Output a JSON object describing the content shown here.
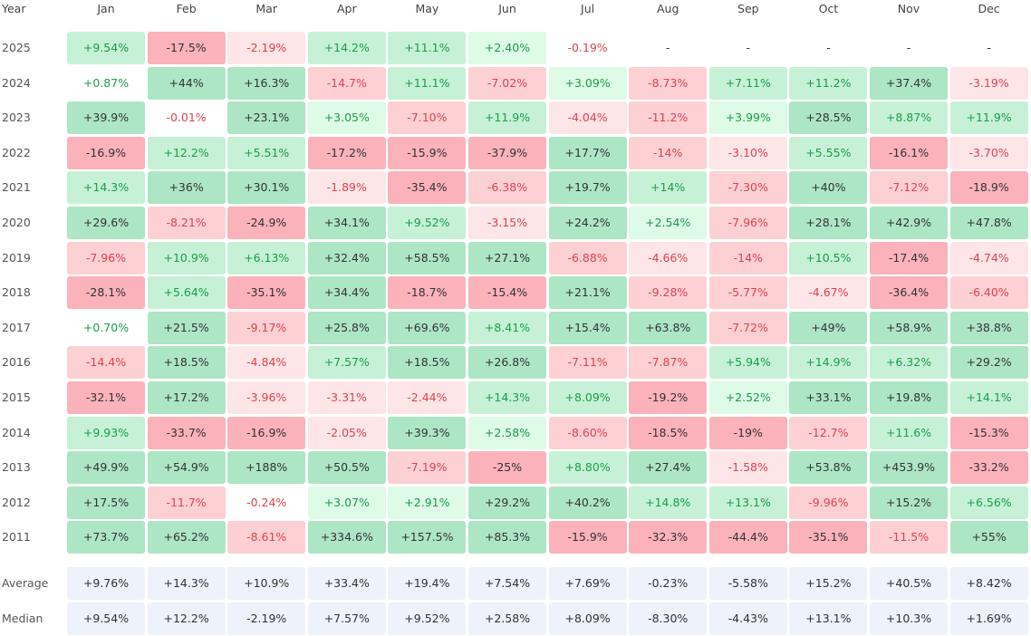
{
  "chart_data": {
    "type": "heatmap",
    "year_header": "Year",
    "months": [
      "Jan",
      "Feb",
      "Mar",
      "Apr",
      "May",
      "Jun",
      "Jul",
      "Aug",
      "Sep",
      "Oct",
      "Nov",
      "Dec"
    ],
    "rows": [
      {
        "label": "2025",
        "values": [
          "+9.54%",
          "-17.5%",
          "-2.19%",
          "+14.2%",
          "+11.1%",
          "+2.40%",
          "-0.19%",
          "-",
          "-",
          "-",
          "-",
          "-"
        ]
      },
      {
        "label": "2024",
        "values": [
          "+0.87%",
          "+44%",
          "+16.3%",
          "-14.7%",
          "+11.1%",
          "-7.02%",
          "+3.09%",
          "-8.73%",
          "+7.11%",
          "+11.2%",
          "+37.4%",
          "-3.19%"
        ]
      },
      {
        "label": "2023",
        "values": [
          "+39.9%",
          "-0.01%",
          "+23.1%",
          "+3.05%",
          "-7.10%",
          "+11.9%",
          "-4.04%",
          "-11.2%",
          "+3.99%",
          "+28.5%",
          "+8.87%",
          "+11.9%"
        ]
      },
      {
        "label": "2022",
        "values": [
          "-16.9%",
          "+12.2%",
          "+5.51%",
          "-17.2%",
          "-15.9%",
          "-37.9%",
          "+17.7%",
          "-14%",
          "-3.10%",
          "+5.55%",
          "-16.1%",
          "-3.70%"
        ]
      },
      {
        "label": "2021",
        "values": [
          "+14.3%",
          "+36%",
          "+30.1%",
          "-1.89%",
          "-35.4%",
          "-6.38%",
          "+19.7%",
          "+14%",
          "-7.30%",
          "+40%",
          "-7.12%",
          "-18.9%"
        ]
      },
      {
        "label": "2020",
        "values": [
          "+29.6%",
          "-8.21%",
          "-24.9%",
          "+34.1%",
          "+9.52%",
          "-3.15%",
          "+24.2%",
          "+2.54%",
          "-7.96%",
          "+28.1%",
          "+42.9%",
          "+47.8%"
        ]
      },
      {
        "label": "2019",
        "values": [
          "-7.96%",
          "+10.9%",
          "+6.13%",
          "+32.4%",
          "+58.5%",
          "+27.1%",
          "-6.88%",
          "-4.66%",
          "-14%",
          "+10.5%",
          "-17.4%",
          "-4.74%"
        ]
      },
      {
        "label": "2018",
        "values": [
          "-28.1%",
          "+5.64%",
          "-35.1%",
          "+34.4%",
          "-18.7%",
          "-15.4%",
          "+21.1%",
          "-9.28%",
          "-5.77%",
          "-4.67%",
          "-36.4%",
          "-6.40%"
        ]
      },
      {
        "label": "2017",
        "values": [
          "+0.70%",
          "+21.5%",
          "-9.17%",
          "+25.8%",
          "+69.6%",
          "+8.41%",
          "+15.4%",
          "+63.8%",
          "-7.72%",
          "+49%",
          "+58.9%",
          "+38.8%"
        ]
      },
      {
        "label": "2016",
        "values": [
          "-14.4%",
          "+18.5%",
          "-4.84%",
          "+7.57%",
          "+18.5%",
          "+26.8%",
          "-7.11%",
          "-7.87%",
          "+5.94%",
          "+14.9%",
          "+6.32%",
          "+29.2%"
        ]
      },
      {
        "label": "2015",
        "values": [
          "-32.1%",
          "+17.2%",
          "-3.96%",
          "-3.31%",
          "-2.44%",
          "+14.3%",
          "+8.09%",
          "-19.2%",
          "+2.52%",
          "+33.1%",
          "+19.8%",
          "+14.1%"
        ]
      },
      {
        "label": "2014",
        "values": [
          "+9.93%",
          "-33.7%",
          "-16.9%",
          "-2.05%",
          "+39.3%",
          "+2.58%",
          "-8.60%",
          "-18.5%",
          "-19%",
          "-12.7%",
          "+11.6%",
          "-15.3%"
        ]
      },
      {
        "label": "2013",
        "values": [
          "+49.9%",
          "+54.9%",
          "+188%",
          "+50.5%",
          "-7.19%",
          "-25%",
          "+8.80%",
          "+27.4%",
          "-1.58%",
          "+53.8%",
          "+453.9%",
          "-33.2%"
        ]
      },
      {
        "label": "2012",
        "values": [
          "+17.5%",
          "-11.7%",
          "-0.24%",
          "+3.07%",
          "+2.91%",
          "+29.2%",
          "+40.2%",
          "+14.8%",
          "+13.1%",
          "-9.96%",
          "+15.2%",
          "+6.56%"
        ]
      },
      {
        "label": "2011",
        "values": [
          "+73.7%",
          "+65.2%",
          "-8.61%",
          "+334.6%",
          "+157.5%",
          "+85.3%",
          "-15.9%",
          "-32.3%",
          "-44.4%",
          "-35.1%",
          "-11.5%",
          "+55%"
        ]
      }
    ],
    "summary": [
      {
        "label": "Average",
        "values": [
          "+9.76%",
          "+14.3%",
          "+10.9%",
          "+33.4%",
          "+19.4%",
          "+7.54%",
          "+7.69%",
          "-0.23%",
          "-5.58%",
          "+15.2%",
          "+40.5%",
          "+8.42%"
        ]
      },
      {
        "label": "Median",
        "values": [
          "+9.54%",
          "+12.2%",
          "-2.19%",
          "+7.57%",
          "+9.52%",
          "+2.58%",
          "+8.09%",
          "-8.30%",
          "-4.43%",
          "+13.1%",
          "+10.3%",
          "+1.69%"
        ]
      }
    ],
    "colors": {
      "pos_light": "#ddfbe6",
      "pos_mid": "#c6f1d6",
      "pos_strong": "#ade6c5",
      "neg_light": "#fee5e7",
      "neg_mid": "#fdd0d4",
      "neg_strong": "#fbb2ba",
      "summary_bg": "#eef2fa",
      "pos_text": "#1a9e4b",
      "neg_text": "#e0434f",
      "dark_text": "#333333"
    }
  }
}
